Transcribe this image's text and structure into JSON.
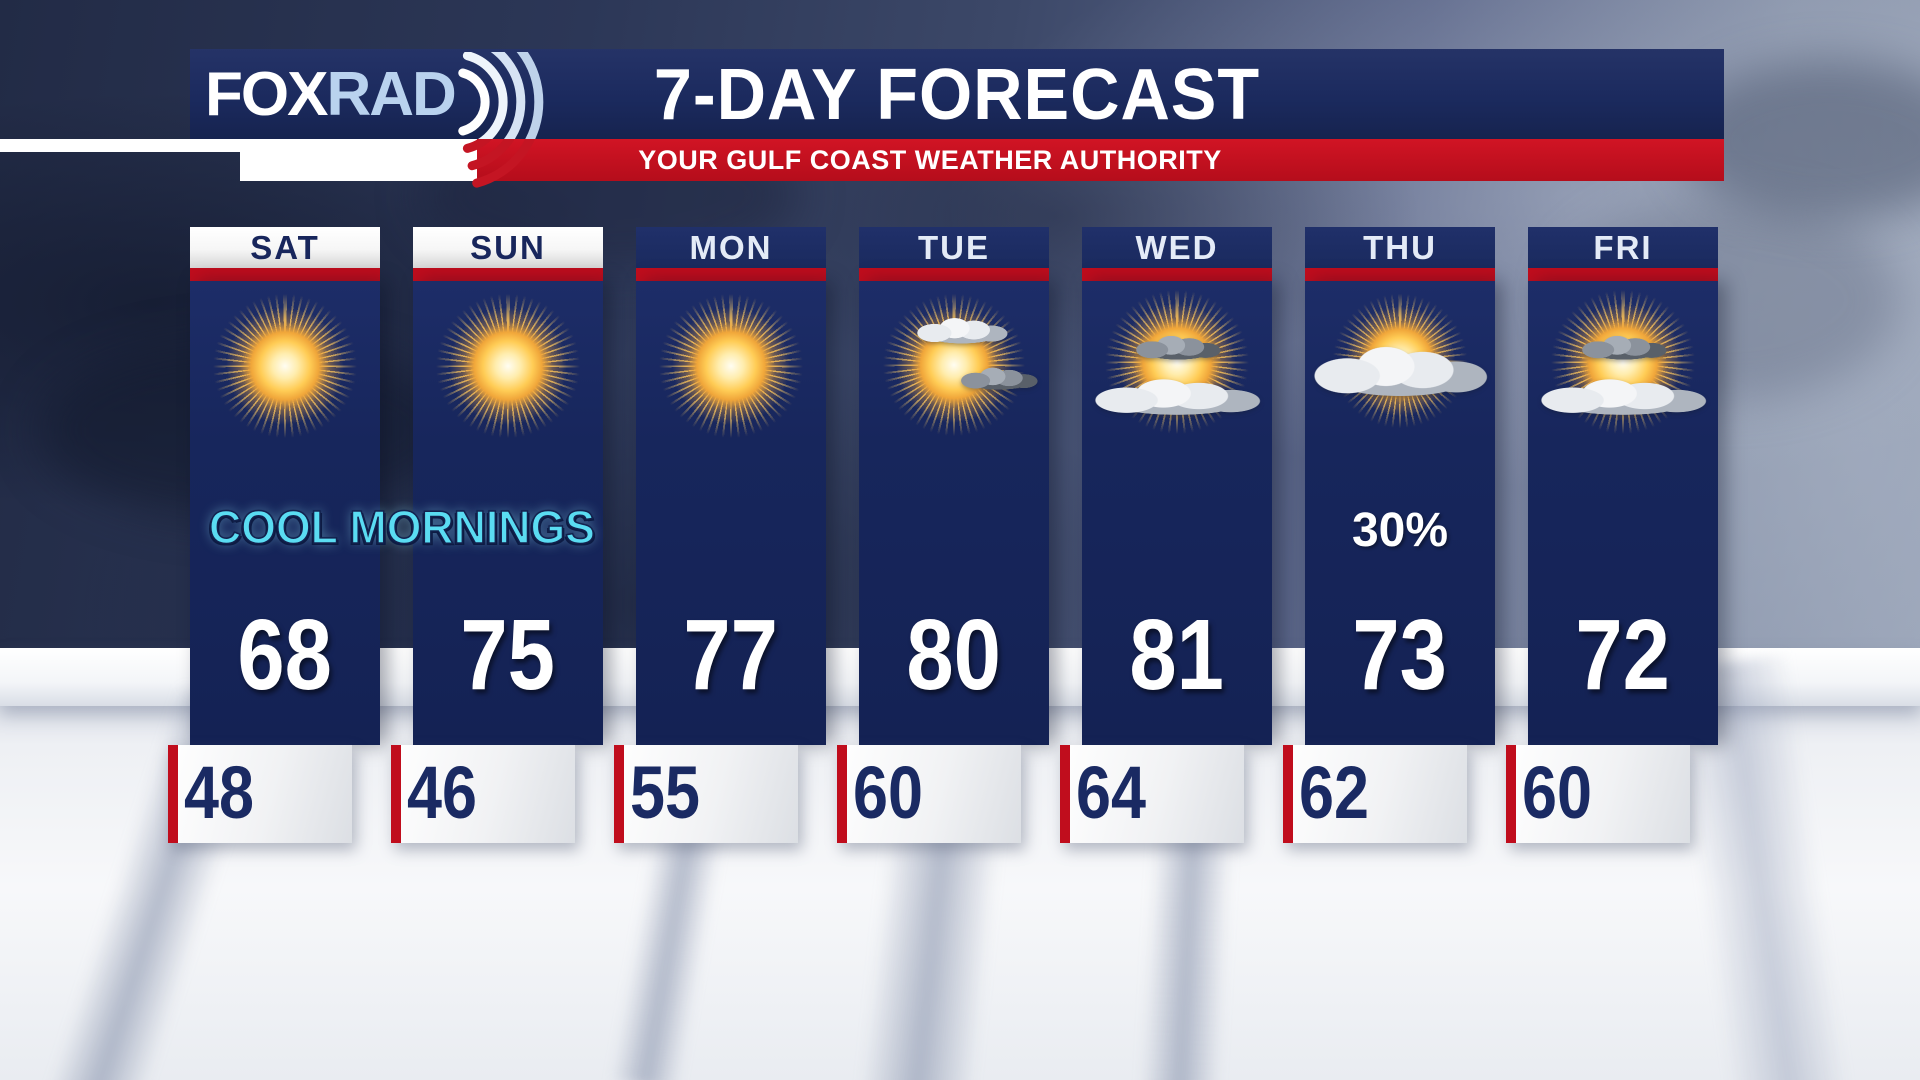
{
  "header": {
    "brand": {
      "fox": "FOX",
      "rad": "RAD"
    },
    "title": "7-DAY FORECAST",
    "subtitle": "YOUR GULF COAST WEATHER AUTHORITY"
  },
  "annotations": {
    "cool_mornings": "COOL MORNINGS"
  },
  "days": [
    {
      "label": "SAT",
      "high": "68",
      "low": "48",
      "icon": "sunny",
      "weekend": true
    },
    {
      "label": "SUN",
      "high": "75",
      "low": "46",
      "icon": "sunny",
      "weekend": true
    },
    {
      "label": "MON",
      "high": "77",
      "low": "55",
      "icon": "sunny",
      "weekend": false
    },
    {
      "label": "TUE",
      "high": "80",
      "low": "60",
      "icon": "sun-with-clouds",
      "weekend": false
    },
    {
      "label": "WED",
      "high": "81",
      "low": "64",
      "icon": "partly-cloudy",
      "weekend": false
    },
    {
      "label": "THU",
      "high": "73",
      "low": "62",
      "icon": "mostly-cloudy",
      "weekend": false,
      "precip": "30%"
    },
    {
      "label": "FRI",
      "high": "72",
      "low": "60",
      "icon": "partly-cloudy",
      "weekend": false
    }
  ],
  "colors": {
    "accent_red": "#c00d1d",
    "banner_navy": "#1b2a5e",
    "panel_navy": "#17265c",
    "highlight_cyan": "#5adcf2",
    "low_text_navy": "#1a2a63"
  }
}
